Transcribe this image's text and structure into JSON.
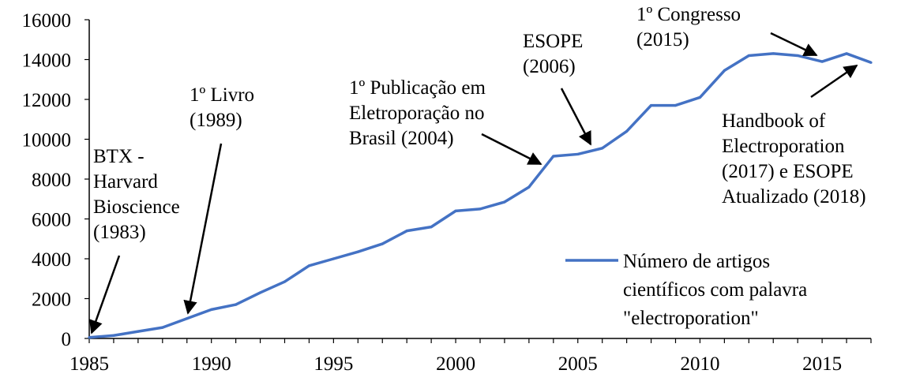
{
  "chart_data": {
    "type": "line",
    "title": "",
    "xlabel": "",
    "ylabel": "",
    "xlim": [
      1985,
      2017
    ],
    "ylim": [
      0,
      16000
    ],
    "x_ticks": [
      1985,
      1990,
      1995,
      2000,
      2005,
      2010,
      2015
    ],
    "y_ticks": [
      0,
      2000,
      4000,
      6000,
      8000,
      10000,
      12000,
      14000,
      16000
    ],
    "grid": false,
    "legend_position": "bottom-right",
    "series": [
      {
        "name": "Número de artigos científicos com palavra \"electroporation\"",
        "color": "#4472C4",
        "x": [
          1985,
          1986,
          1987,
          1988,
          1989,
          1990,
          1991,
          1992,
          1993,
          1994,
          1995,
          1996,
          1997,
          1998,
          1999,
          2000,
          2001,
          2002,
          2003,
          2004,
          2005,
          2006,
          2007,
          2008,
          2009,
          2010,
          2011,
          2012,
          2013,
          2014,
          2015,
          2016,
          2017
        ],
        "y": [
          50,
          150,
          350,
          550,
          1000,
          1450,
          1700,
          2300,
          2850,
          3650,
          4000,
          4350,
          4750,
          5400,
          5600,
          6400,
          6500,
          6850,
          7600,
          9150,
          9250,
          9550,
          10400,
          11700,
          11700,
          12100,
          13450,
          14200,
          14300,
          14200,
          13900,
          14300,
          13850
        ]
      }
    ],
    "annotations": [
      {
        "lines": [
          "BTX -",
          "Harvard",
          "Bioscience",
          "(1983)"
        ]
      },
      {
        "lines": [
          "1º Livro",
          "(1989)"
        ]
      },
      {
        "lines": [
          "1º Publicação em",
          "Eletroporação no",
          "Brasil (2004)"
        ]
      },
      {
        "lines": [
          "ESOPE",
          "(2006)"
        ]
      },
      {
        "lines": [
          "1º Congresso",
          "(2015)"
        ]
      },
      {
        "lines": [
          "Handbook of",
          "Electroporation",
          "(2017) e ESOPE",
          "Atualizado (2018)"
        ]
      }
    ],
    "legend_lines": [
      "Número de artigos",
      "científicos com palavra",
      "\"electroporation\""
    ]
  }
}
